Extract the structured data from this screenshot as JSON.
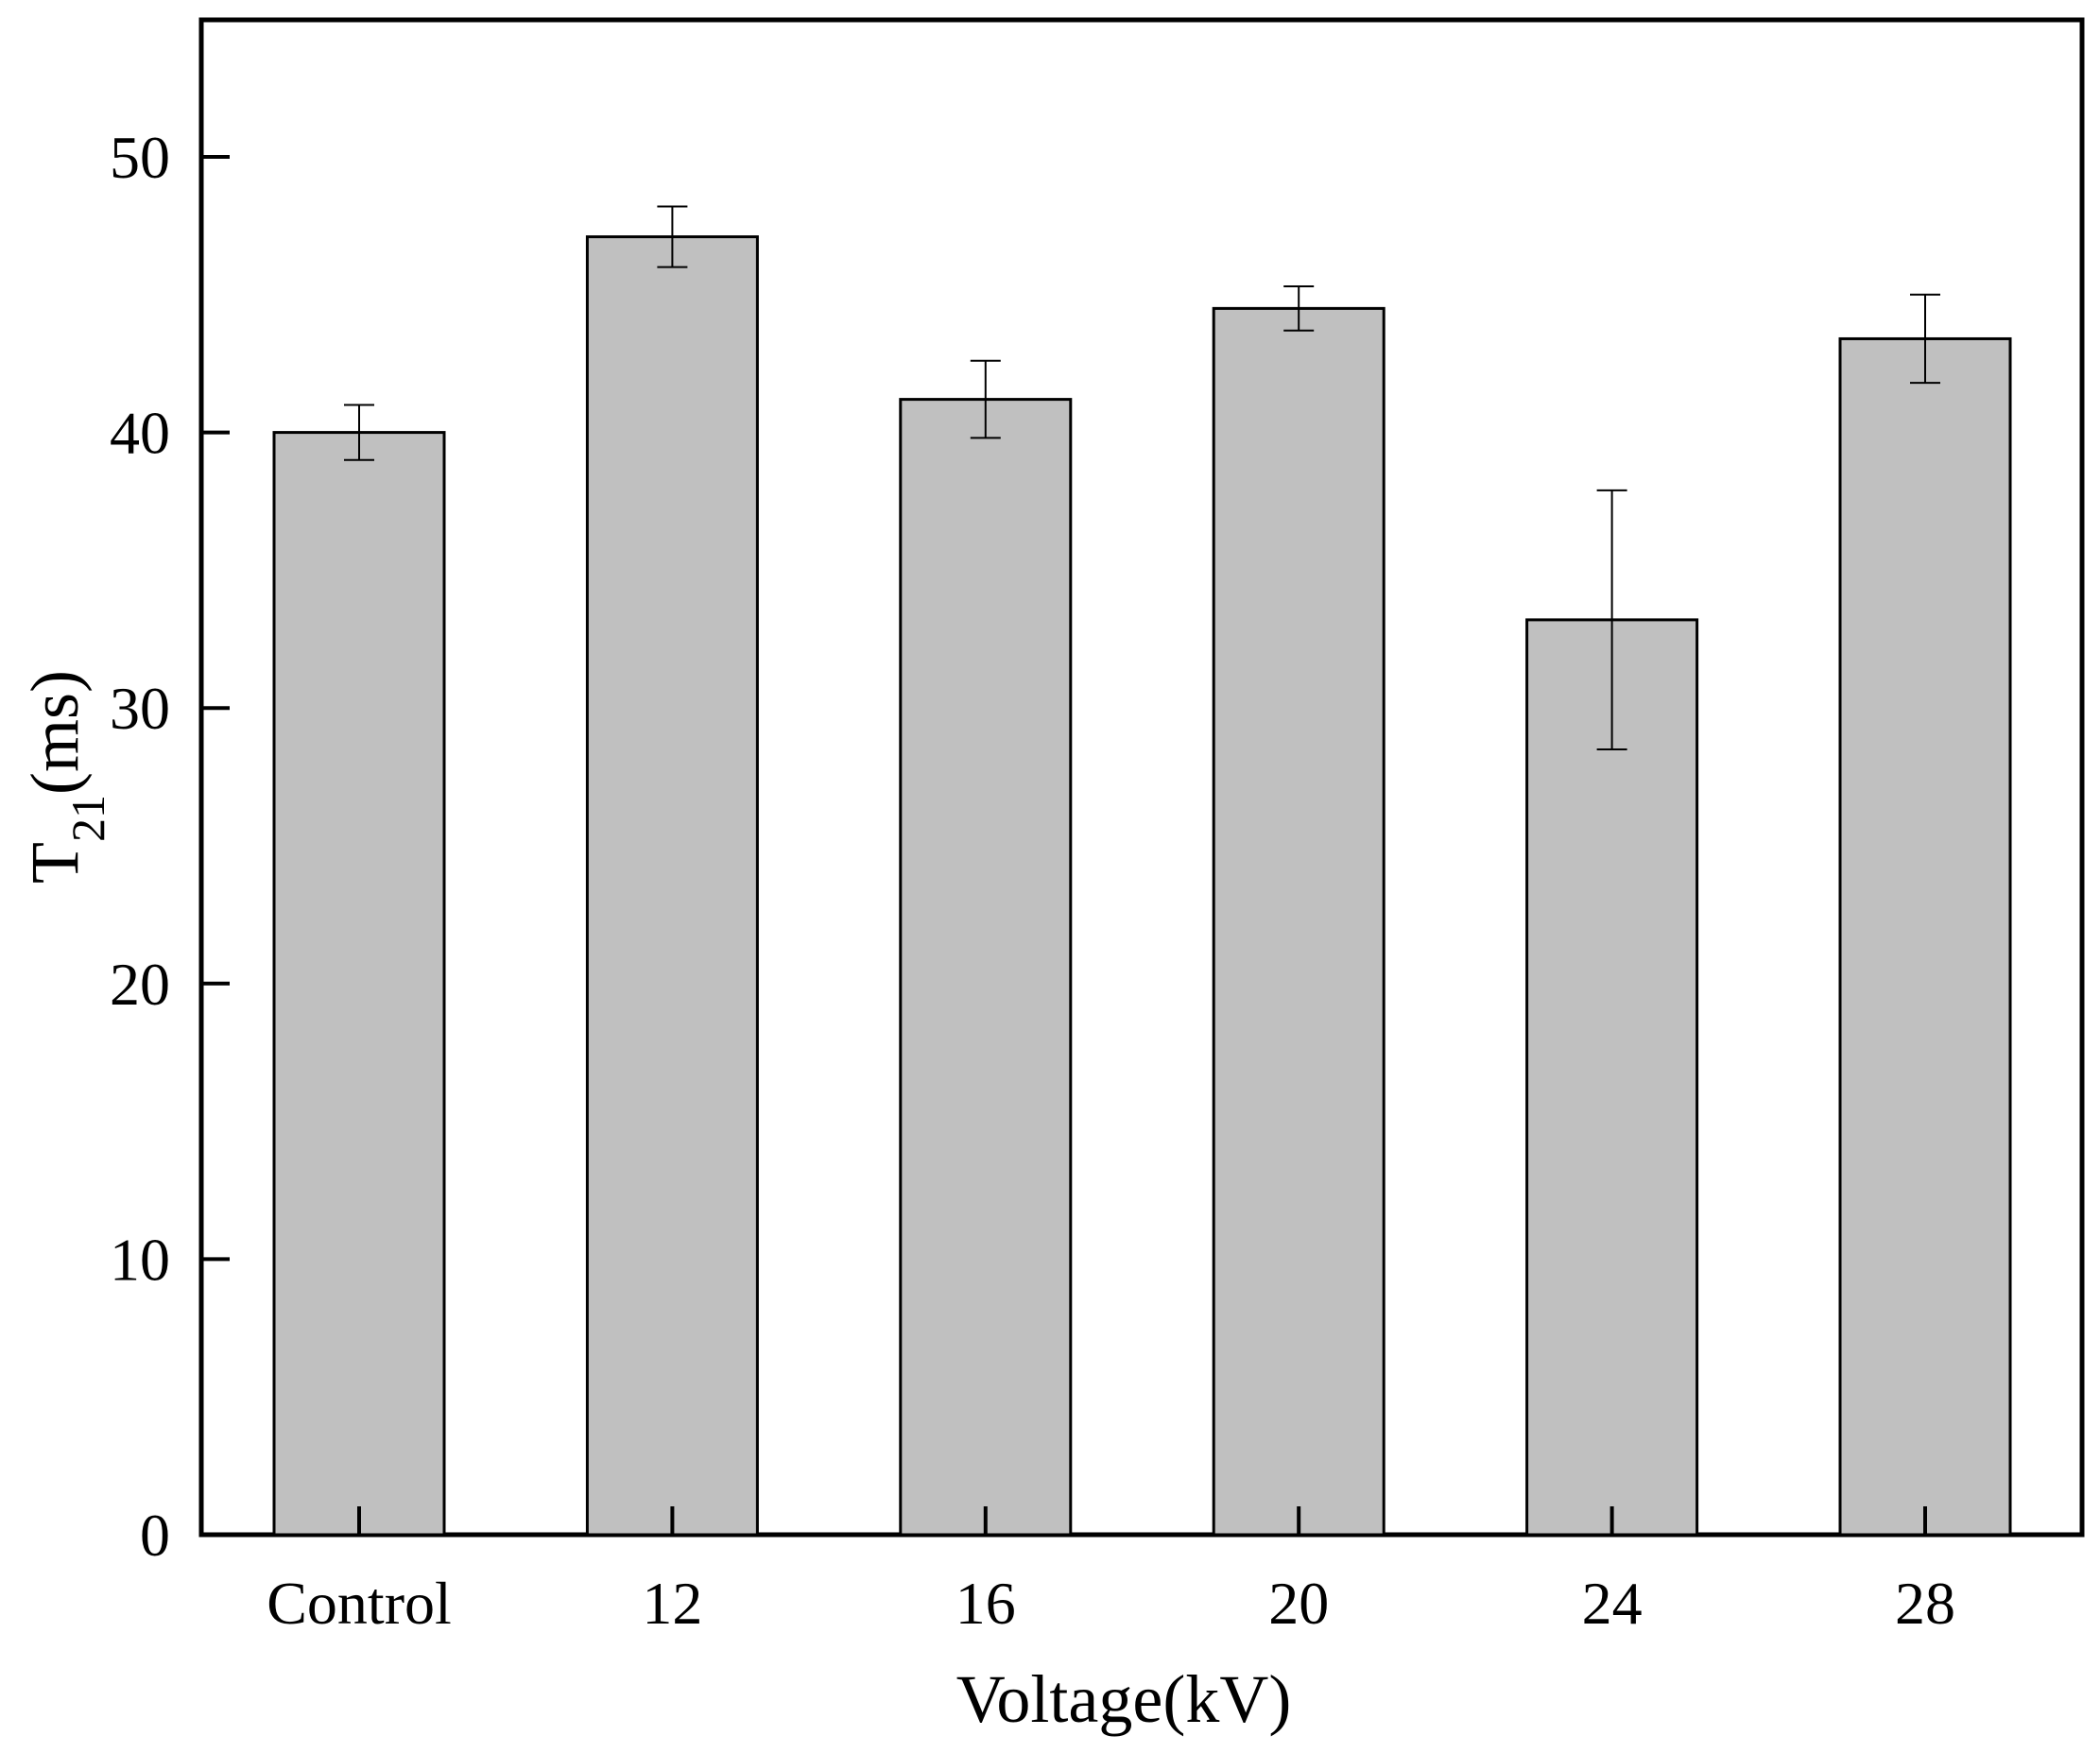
{
  "chart_data": {
    "type": "bar",
    "title": "",
    "xlabel": "Voltage(kV)",
    "ylabel": {
      "main": "T",
      "subscript": "21",
      "unit": "(ms)"
    },
    "categories": [
      "Control",
      "12",
      "16",
      "20",
      "24",
      "28"
    ],
    "values": [
      40.0,
      47.1,
      41.2,
      44.5,
      33.2,
      43.4
    ],
    "errors": [
      1.0,
      1.1,
      1.4,
      0.8,
      4.7,
      1.6
    ],
    "ylim": [
      0,
      55
    ],
    "yticks": [
      0,
      10,
      20,
      30,
      40,
      50
    ],
    "ytick_labels": [
      "0",
      "10",
      "20",
      "30",
      "40",
      "50"
    ],
    "grid": false,
    "bar_color": "#c0c0c0",
    "edge_color": "#000000"
  }
}
